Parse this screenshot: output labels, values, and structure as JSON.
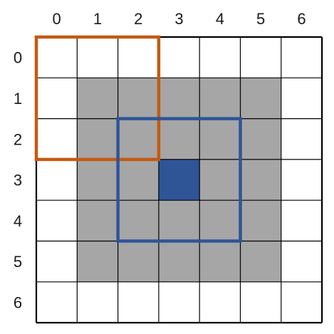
{
  "grid": {
    "rows": 7,
    "cols": 7,
    "col_labels": [
      "0",
      "1",
      "2",
      "3",
      "4",
      "5",
      "6"
    ],
    "row_labels": [
      "0",
      "1",
      "2",
      "3",
      "4",
      "5",
      "6"
    ],
    "cell_fill": "#ffffff",
    "grid_line_color": "#000000"
  },
  "shaded_region": {
    "row_start": 1,
    "row_end": 5,
    "col_start": 1,
    "col_end": 5,
    "color": "#a6a6a6"
  },
  "center_cell": {
    "row": 3,
    "col": 3,
    "color": "#2f5597"
  },
  "highlight_boxes": [
    {
      "name": "orange-box",
      "row_start": 0,
      "row_end": 2,
      "col_start": 0,
      "col_end": 2,
      "color": "#c55a11"
    },
    {
      "name": "blue-box",
      "row_start": 2,
      "row_end": 4,
      "col_start": 2,
      "col_end": 4,
      "color": "#2f5597"
    }
  ]
}
